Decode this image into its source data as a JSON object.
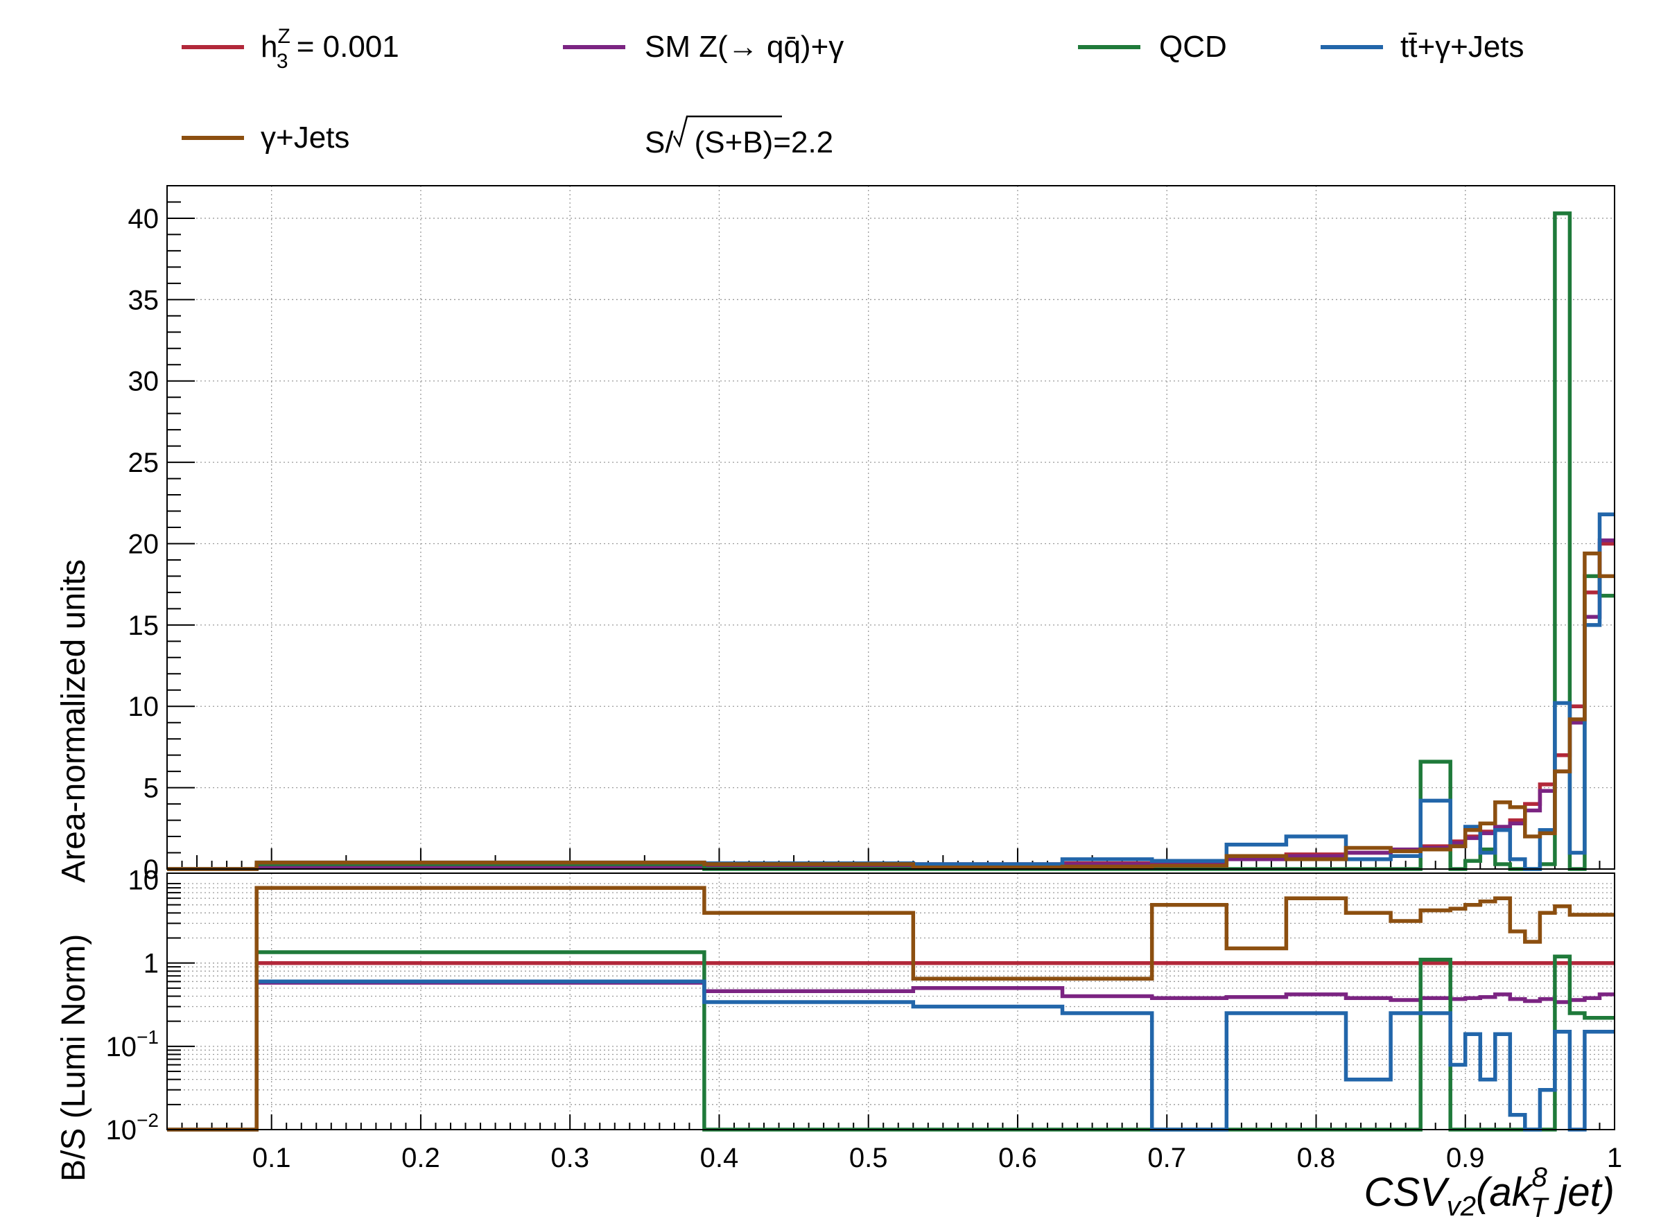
{
  "legend": {
    "entries": [
      {
        "key": "h3z",
        "label_main": "h",
        "label_sup": "Z",
        "label_sub": "3",
        "label_rest": " = 0.001",
        "color": "#b2283a"
      },
      {
        "key": "sm",
        "label": "SM Z(→ qq̄)+γ",
        "color": "#7b2482"
      },
      {
        "key": "qcd",
        "label": "QCD",
        "color": "#1f7a3a"
      },
      {
        "key": "tt",
        "label": "tt̄+γ+Jets",
        "color": "#2266aa"
      },
      {
        "key": "gj",
        "label": "γ+Jets",
        "color": "#8c4f10"
      }
    ],
    "significance": {
      "prefix": "S/",
      "radicand": "(S+B)",
      "suffix": "=2.2"
    }
  },
  "chart_data": [
    {
      "type": "line",
      "style": "step-histogram",
      "panel": "main",
      "ylabel": "Area-normalized units",
      "xlim": [
        0.03,
        1.0
      ],
      "ylim": [
        0,
        42
      ],
      "grid": true,
      "yticks": [
        "0",
        "5",
        "10",
        "15",
        "20",
        "25",
        "30",
        "35",
        "40"
      ],
      "bin_edges": [
        0.03,
        0.09,
        0.39,
        0.53,
        0.63,
        0.69,
        0.74,
        0.78,
        0.82,
        0.85,
        0.87,
        0.89,
        0.9,
        0.91,
        0.92,
        0.93,
        0.94,
        0.95,
        0.96,
        0.97,
        0.98,
        0.99,
        1.0
      ],
      "series": [
        {
          "name": "h3Z = 0.001",
          "key": "h3z",
          "color": "#b2283a",
          "values": [
            0.0,
            0.2,
            0.25,
            0.3,
            0.35,
            0.4,
            0.7,
            0.9,
            1.0,
            1.2,
            1.4,
            1.7,
            2.0,
            2.3,
            2.5,
            3.0,
            4.0,
            5.2,
            7.0,
            10.0,
            17.0,
            20.0
          ]
        },
        {
          "name": "SM Z(→ qq̄)+γ",
          "key": "sm",
          "color": "#7b2482",
          "values": [
            0.0,
            0.15,
            0.2,
            0.25,
            0.3,
            0.35,
            0.6,
            0.8,
            1.0,
            1.2,
            1.3,
            1.6,
            1.9,
            2.2,
            2.6,
            2.8,
            3.6,
            4.8,
            6.0,
            9.0,
            15.5,
            20.2
          ]
        },
        {
          "name": "QCD",
          "key": "qcd",
          "color": "#1f7a3a",
          "values": [
            0.0,
            0.3,
            0.0,
            0.0,
            0.0,
            0.0,
            0.0,
            0.0,
            0.0,
            0.0,
            6.6,
            0.0,
            0.5,
            1.2,
            0.3,
            0.0,
            0.0,
            0.3,
            40.3,
            0.0,
            18.0,
            16.8
          ]
        },
        {
          "name": "tt̄+γ+Jets",
          "key": "tt",
          "color": "#2266aa",
          "values": [
            0.0,
            0.4,
            0.35,
            0.3,
            0.6,
            0.5,
            1.5,
            2.0,
            0.6,
            0.8,
            4.2,
            1.4,
            2.6,
            1.0,
            2.4,
            0.6,
            0.0,
            2.4,
            10.2,
            1.0,
            15.0,
            21.8
          ]
        },
        {
          "name": "γ+Jets",
          "key": "gj",
          "color": "#8c4f10",
          "values": [
            0.0,
            0.4,
            0.3,
            0.1,
            0.15,
            0.2,
            0.8,
            0.6,
            1.3,
            1.1,
            1.2,
            1.4,
            2.4,
            2.8,
            4.1,
            3.8,
            2.0,
            2.2,
            6.0,
            9.2,
            19.4,
            18.0
          ]
        }
      ]
    },
    {
      "type": "line",
      "style": "step-histogram",
      "panel": "ratio",
      "ylabel": "B/S (Lumi Norm)",
      "xlabel": "CSV_v2(ak_T^8 jet)",
      "xlabel_parts": {
        "main": "CSV",
        "sub1": "v2",
        "open": "(ak",
        "sup": "8",
        "sub2": "T",
        "rest": " jet)"
      },
      "xlim": [
        0.03,
        1.0
      ],
      "ylim": [
        0.01,
        12
      ],
      "yscale": "log",
      "grid": true,
      "xticks": [
        "0.1",
        "0.2",
        "0.3",
        "0.4",
        "0.5",
        "0.6",
        "0.7",
        "0.8",
        "0.9",
        "1"
      ],
      "yticks": [
        {
          "value": 10,
          "base": "10",
          "exp": ""
        },
        {
          "value": 1,
          "base": "1",
          "exp": ""
        },
        {
          "value": 0.1,
          "base": "10",
          "exp": "−1"
        },
        {
          "value": 0.01,
          "base": "10",
          "exp": "−2"
        }
      ],
      "bin_edges": [
        0.03,
        0.09,
        0.39,
        0.53,
        0.63,
        0.69,
        0.74,
        0.78,
        0.82,
        0.85,
        0.87,
        0.89,
        0.9,
        0.91,
        0.92,
        0.93,
        0.94,
        0.95,
        0.96,
        0.97,
        0.98,
        0.99,
        1.0
      ],
      "series": [
        {
          "name": "h3Z = 0.001",
          "key": "h3z",
          "color": "#b2283a",
          "values": [
            null,
            1.0,
            1.0,
            1.0,
            1.0,
            1.0,
            1.0,
            1.0,
            1.0,
            1.0,
            1.0,
            1.0,
            1.0,
            1.0,
            1.0,
            1.0,
            1.0,
            1.0,
            1.0,
            1.0,
            1.0,
            1.0
          ]
        },
        {
          "name": "SM Z(→ qq̄)+γ",
          "key": "sm",
          "color": "#7b2482",
          "values": [
            null,
            0.58,
            0.46,
            0.5,
            0.4,
            0.38,
            0.39,
            0.42,
            0.38,
            0.36,
            0.38,
            0.37,
            0.38,
            0.39,
            0.42,
            0.37,
            0.35,
            0.37,
            0.34,
            0.36,
            0.38,
            0.42
          ]
        },
        {
          "name": "QCD",
          "key": "qcd",
          "color": "#1f7a3a",
          "values": [
            null,
            1.35,
            0.01,
            0.01,
            0.01,
            0.01,
            0.01,
            0.01,
            0.01,
            0.01,
            1.1,
            0.01,
            0.01,
            0.01,
            0.01,
            0.01,
            0.01,
            0.01,
            1.2,
            0.25,
            0.22,
            0.22
          ]
        },
        {
          "name": "tt̄+γ+Jets",
          "key": "tt",
          "color": "#2266aa",
          "values": [
            0.01,
            0.6,
            0.34,
            0.3,
            0.25,
            0.01,
            0.25,
            0.25,
            0.04,
            0.25,
            0.25,
            0.06,
            0.14,
            0.04,
            0.14,
            0.015,
            0.01,
            0.03,
            0.15,
            0.01,
            0.15,
            0.15
          ]
        },
        {
          "name": "γ+Jets",
          "key": "gj",
          "color": "#8c4f10",
          "values": [
            0.01,
            8.0,
            4.0,
            0.65,
            0.65,
            5.0,
            1.5,
            6.0,
            4.0,
            3.2,
            4.3,
            4.5,
            5.0,
            5.5,
            6.0,
            2.4,
            1.8,
            4.0,
            4.8,
            3.8,
            3.8,
            3.8
          ]
        }
      ]
    }
  ]
}
